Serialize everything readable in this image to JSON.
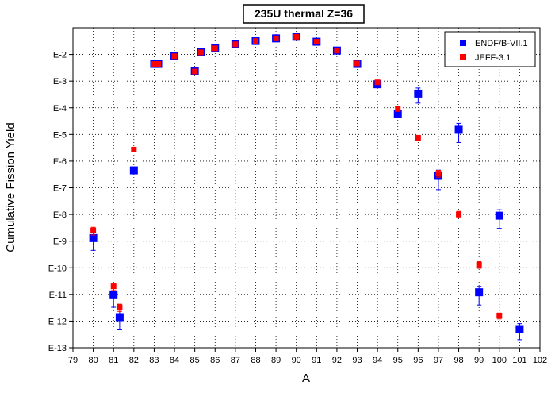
{
  "chart_data": {
    "type": "scatter",
    "title": "235U thermal Z=36",
    "xlabel": "A",
    "ylabel": "Cumulative Fission Yield",
    "xlim": [
      79,
      102
    ],
    "ylim": [
      1e-13,
      0.1
    ],
    "yscale": "log",
    "grid": true,
    "legend_position": "top-right",
    "x_ticks": [
      "79",
      "80",
      "81",
      "82",
      "83",
      "84",
      "85",
      "86",
      "87",
      "88",
      "89",
      "90",
      "91",
      "92",
      "93",
      "94",
      "95",
      "96",
      "97",
      "98",
      "99",
      "100",
      "101",
      "102"
    ],
    "y_ticks": [
      {
        "value": 0.01,
        "label": "E-2"
      },
      {
        "value": 0.001,
        "label": "E-3"
      },
      {
        "value": 0.0001,
        "label": "E-4"
      },
      {
        "value": 1e-05,
        "label": "E-5"
      },
      {
        "value": 1e-06,
        "label": "E-6"
      },
      {
        "value": 1e-07,
        "label": "E-7"
      },
      {
        "value": 1e-08,
        "label": "E-8"
      },
      {
        "value": 1e-09,
        "label": "E-9"
      },
      {
        "value": 1e-10,
        "label": "E-10"
      },
      {
        "value": 1e-11,
        "label": "E-11"
      },
      {
        "value": 1e-12,
        "label": "E-12"
      },
      {
        "value": 1e-13,
        "label": "E-13"
      }
    ],
    "series": [
      {
        "name": "ENDF/B-VII.1",
        "color": "#0000ff",
        "marker": "square",
        "points": [
          {
            "x": 80,
            "y": 1.3e-09,
            "lo": 4.5e-10,
            "hi": 2.4e-09
          },
          {
            "x": 81,
            "y": 1e-11,
            "lo": 3.3e-12,
            "hi": 2e-11
          },
          {
            "x": 81.3,
            "y": 1.4e-12,
            "lo": 5e-13,
            "hi": 3.3e-12
          },
          {
            "x": 82,
            "y": 4.5e-07
          },
          {
            "x": 83,
            "y": 0.0044
          },
          {
            "x": 83.2,
            "y": 0.0044
          },
          {
            "x": 84,
            "y": 0.0086
          },
          {
            "x": 85,
            "y": 0.0023
          },
          {
            "x": 85.3,
            "y": 0.012
          },
          {
            "x": 86,
            "y": 0.017
          },
          {
            "x": 87,
            "y": 0.024
          },
          {
            "x": 88,
            "y": 0.032
          },
          {
            "x": 89,
            "y": 0.04
          },
          {
            "x": 90,
            "y": 0.046
          },
          {
            "x": 91,
            "y": 0.03
          },
          {
            "x": 92,
            "y": 0.014
          },
          {
            "x": 93,
            "y": 0.0044
          },
          {
            "x": 94,
            "y": 0.00076
          },
          {
            "x": 95,
            "y": 6.1e-05,
            "lo": 4.8e-05,
            "hi": 7.5e-05
          },
          {
            "x": 96,
            "y": 0.00034,
            "lo": 0.00015,
            "hi": 0.00055
          },
          {
            "x": 97,
            "y": 2.8e-07,
            "lo": 8.5e-08,
            "hi": 4.6e-07
          },
          {
            "x": 98,
            "y": 1.5e-05,
            "lo": 5e-06,
            "hi": 2.6e-05
          },
          {
            "x": 99,
            "y": 1.2e-11,
            "lo": 4e-12,
            "hi": 2e-11
          },
          {
            "x": 100,
            "y": 9e-09,
            "lo": 3e-09,
            "hi": 1.5e-08
          },
          {
            "x": 101,
            "y": 5e-13,
            "lo": 2e-13,
            "hi": 8e-13
          }
        ]
      },
      {
        "name": "JEFF-3.1",
        "color": "#ff0000",
        "marker": "square",
        "points": [
          {
            "x": 80,
            "y": 2.5e-09,
            "lo": 1.7e-09,
            "hi": 3.3e-09
          },
          {
            "x": 81,
            "y": 2e-11,
            "lo": 1.4e-11,
            "hi": 2.6e-11
          },
          {
            "x": 81.3,
            "y": 3.3e-12,
            "lo": 2.3e-12,
            "hi": 4.3e-12
          },
          {
            "x": 82,
            "y": 2.7e-06
          },
          {
            "x": 83,
            "y": 0.0044
          },
          {
            "x": 83.2,
            "y": 0.0044
          },
          {
            "x": 84,
            "y": 0.0086
          },
          {
            "x": 85,
            "y": 0.0023
          },
          {
            "x": 85.3,
            "y": 0.012
          },
          {
            "x": 86,
            "y": 0.017
          },
          {
            "x": 87,
            "y": 0.024
          },
          {
            "x": 88,
            "y": 0.032
          },
          {
            "x": 89,
            "y": 0.04
          },
          {
            "x": 90,
            "y": 0.046
          },
          {
            "x": 91,
            "y": 0.03
          },
          {
            "x": 92,
            "y": 0.014
          },
          {
            "x": 93,
            "y": 0.0046
          },
          {
            "x": 94,
            "y": 0.0009
          },
          {
            "x": 95,
            "y": 9e-05,
            "lo": 7.5e-05,
            "hi": 0.00011
          },
          {
            "x": 96,
            "y": 7.5e-06,
            "lo": 5.8e-06,
            "hi": 9.3e-06
          },
          {
            "x": 97,
            "y": 3.4e-07,
            "lo": 2.5e-07,
            "hi": 4.5e-07
          },
          {
            "x": 98,
            "y": 1e-08,
            "lo": 7.5e-09,
            "hi": 1.3e-08
          },
          {
            "x": 99,
            "y": 1.3e-10,
            "lo": 9.5e-11,
            "hi": 1.7e-10
          },
          {
            "x": 100,
            "y": 1.6e-12,
            "lo": 1.2e-12,
            "hi": 2e-12
          }
        ]
      }
    ]
  }
}
